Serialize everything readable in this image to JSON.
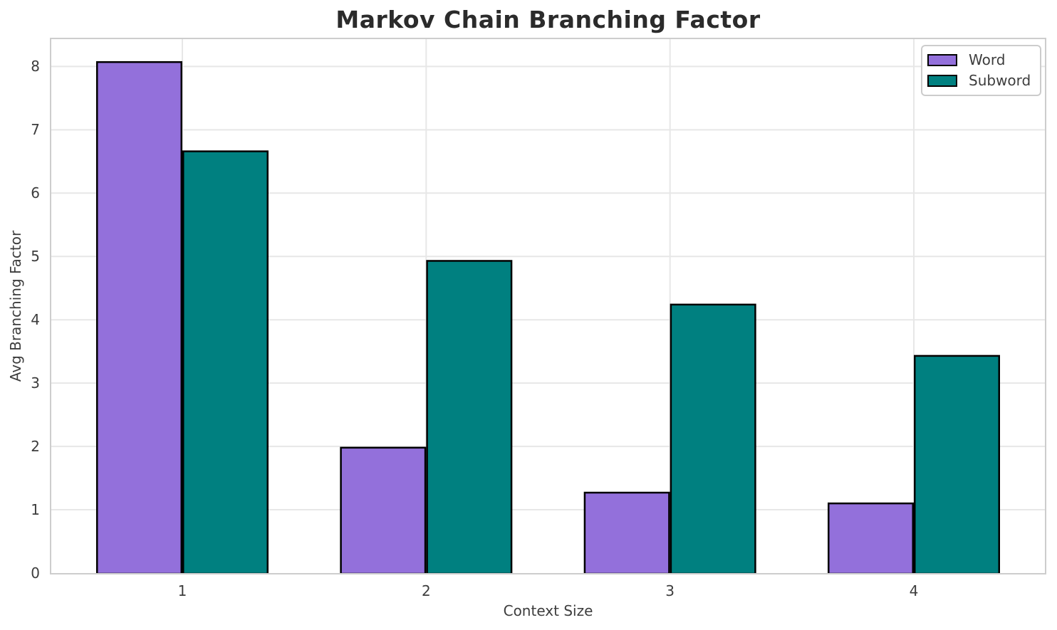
{
  "chart_data": {
    "type": "bar",
    "title": "Markov Chain Branching Factor",
    "xlabel": "Context Size",
    "ylabel": "Avg Branching Factor",
    "categories": [
      "1",
      "2",
      "3",
      "4"
    ],
    "series": [
      {
        "name": "Word",
        "color": "#9370db",
        "values": [
          8.07,
          1.98,
          1.27,
          1.1
        ]
      },
      {
        "name": "Subword",
        "color": "#008080",
        "values": [
          6.66,
          4.93,
          4.24,
          3.43
        ]
      }
    ],
    "yticks": [
      0,
      1,
      2,
      3,
      4,
      5,
      6,
      7,
      8
    ],
    "ylim": [
      0,
      8.46
    ],
    "grid": true,
    "legend_position": "upper right",
    "colors": {
      "bar_edge": "#000000",
      "grid_line": "#e7e7e7",
      "spine": "#cdcdcd",
      "title_text": "#2b2b2b",
      "tick_text": "#3d3d3d",
      "background": "#ffffff"
    }
  }
}
